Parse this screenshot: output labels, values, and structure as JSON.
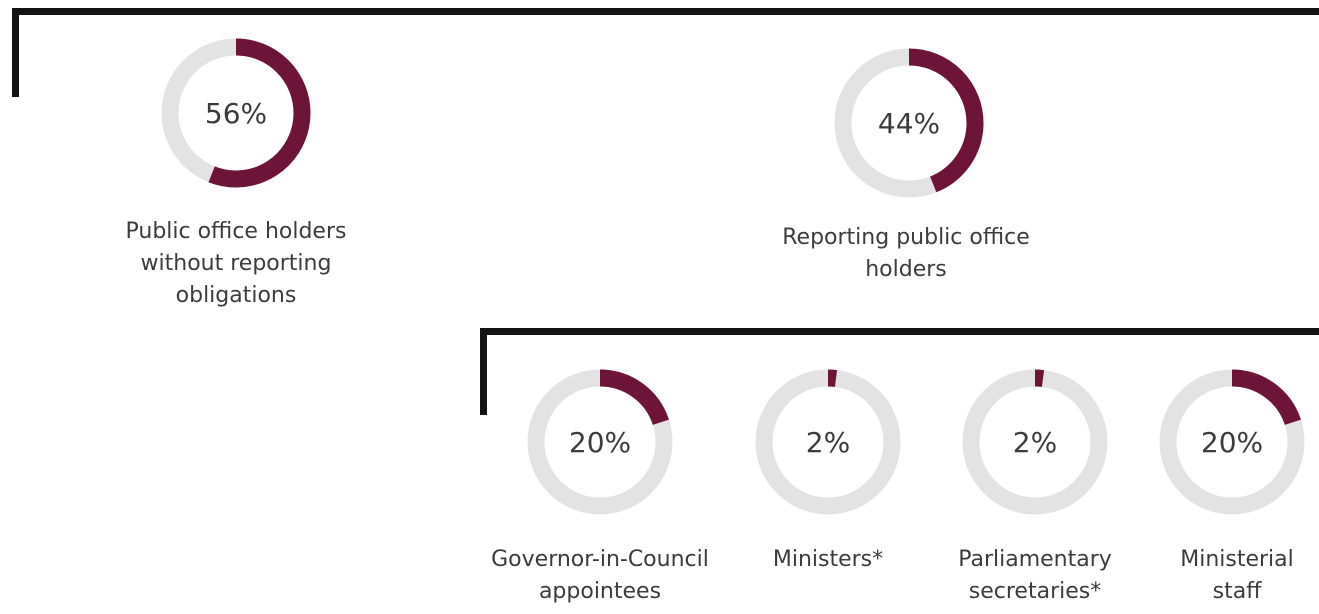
{
  "accent_color": "#6e1439",
  "track_color": "#e3e3e3",
  "chart_data": {
    "type": "donut",
    "items": [
      {
        "id": "without-obligations",
        "percent": 56,
        "value_label": "56%",
        "label": "Public office holders without reporting obligations"
      },
      {
        "id": "reporting",
        "percent": 44,
        "value_label": "44%",
        "label": "Reporting public office holders"
      },
      {
        "id": "gic",
        "percent": 20,
        "value_label": "20%",
        "label": "Governor-in-Council appointees"
      },
      {
        "id": "ministers",
        "percent": 2,
        "value_label": "2%",
        "label": "Ministers*"
      },
      {
        "id": "parl-sec",
        "percent": 2,
        "value_label": "2%",
        "label": "Parliamentary secretaries*"
      },
      {
        "id": "min-staff",
        "percent": 20,
        "value_label": "20%",
        "label": "Ministerial staff"
      }
    ]
  }
}
